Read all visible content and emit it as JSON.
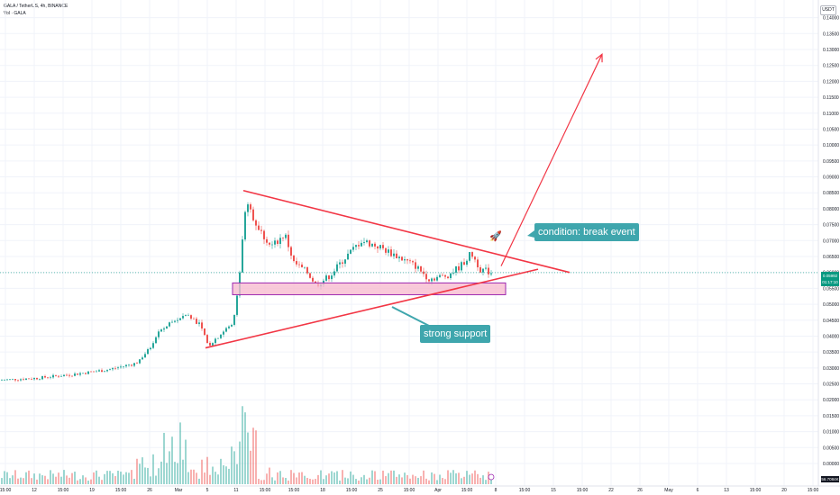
{
  "header": {
    "symbol_line": "GALA / TetherUS, 4h, BINANCE",
    "volume_line": "Vol · GALA"
  },
  "price_scale": {
    "unit": "USDT"
  },
  "last_price": {
    "value": "0.05992",
    "countdown": "01:17:10"
  },
  "volume_readout": "56.7084K",
  "annotations": {
    "callout_breakout": "condition: break event",
    "callout_support": "strong support",
    "rocket_icon": "rocket-icon"
  },
  "colors": {
    "up": "#26a69a",
    "down": "#ef5350",
    "trendline": "#f23645",
    "support_zone_fill": "#f8bbd0",
    "support_zone_border": "#9c27b0",
    "callout": "#3fa6ad"
  },
  "chart_data": {
    "type": "candlestick",
    "interval": "4h",
    "y_ticks": [
      "0.14000",
      "0.13500",
      "0.13000",
      "0.12500",
      "0.12000",
      "0.11500",
      "0.11000",
      "0.10500",
      "0.10000",
      "0.09500",
      "0.09000",
      "0.08500",
      "0.08000",
      "0.07500",
      "0.07000",
      "0.06500",
      "0.06000",
      "0.05500",
      "0.05000",
      "0.04500",
      "0.04000",
      "0.03500",
      "0.03000",
      "0.02500",
      "0.02000",
      "0.01500",
      "0.01000",
      "0.00500",
      "0.00000"
    ],
    "ylim": [
      0.0,
      0.143
    ],
    "x_ticks": [
      "15:00",
      "12",
      "15:00",
      "19",
      "15:00",
      "26",
      "Mar",
      "5",
      "11",
      "15:00",
      "15:00",
      "18",
      "15:00",
      "25",
      "15:00",
      "Apr",
      "15:00",
      "8",
      "15:00",
      "15",
      "15:00",
      "22",
      "26",
      "May",
      "6",
      "13",
      "15:00",
      "20",
      "15:00"
    ],
    "price_path": [
      [
        0,
        0.0262
      ],
      [
        40,
        0.0268
      ],
      [
        80,
        0.028
      ],
      [
        120,
        0.0295
      ],
      [
        150,
        0.0315
      ],
      [
        165,
        0.036
      ],
      [
        175,
        0.042
      ],
      [
        190,
        0.044
      ],
      [
        205,
        0.047
      ],
      [
        220,
        0.044
      ],
      [
        230,
        0.037
      ],
      [
        245,
        0.041
      ],
      [
        258,
        0.044
      ],
      [
        265,
        0.06
      ],
      [
        272,
        0.083
      ],
      [
        285,
        0.074
      ],
      [
        300,
        0.068
      ],
      [
        315,
        0.072
      ],
      [
        325,
        0.063
      ],
      [
        340,
        0.06
      ],
      [
        350,
        0.056
      ],
      [
        365,
        0.059
      ],
      [
        380,
        0.064
      ],
      [
        400,
        0.07
      ],
      [
        420,
        0.068
      ],
      [
        440,
        0.065
      ],
      [
        460,
        0.062
      ],
      [
        475,
        0.058
      ],
      [
        495,
        0.059
      ],
      [
        510,
        0.062
      ],
      [
        522,
        0.066
      ],
      [
        532,
        0.061
      ],
      [
        545,
        0.0599
      ]
    ],
    "annotations": {
      "resistance_line": [
        [
          270,
          0.0857
        ],
        [
          632,
          0.06
        ]
      ],
      "support_line": [
        [
          228,
          0.0363
        ],
        [
          597,
          0.061
        ]
      ],
      "support_zone": [
        0.053,
        0.0567
      ],
      "target_arrow": [
        [
          556,
          0.062
        ],
        [
          668,
          0.1285
        ]
      ]
    }
  }
}
